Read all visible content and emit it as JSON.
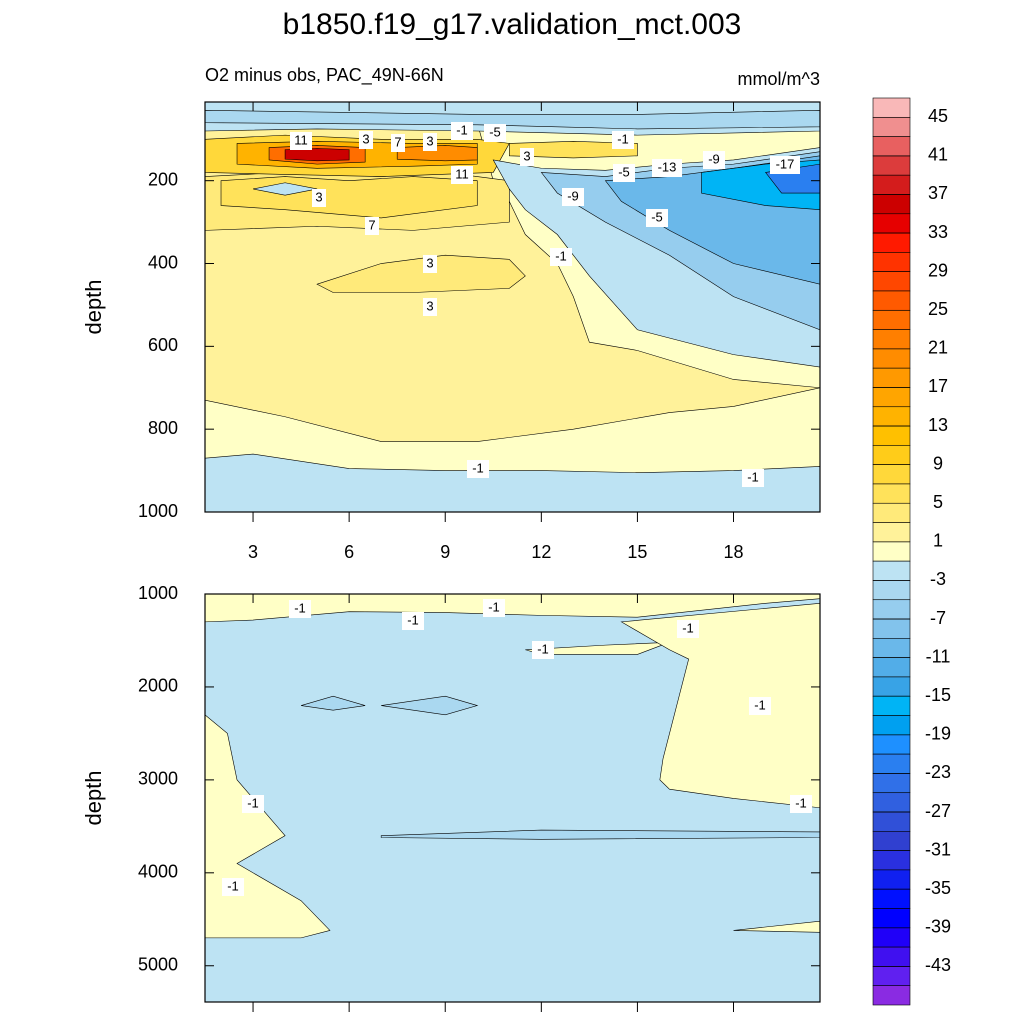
{
  "title": "b1850.f19_g17.validation_mct.003",
  "colorbar": {
    "lim": [
      -47,
      47
    ],
    "ticks": [
      45,
      41,
      37,
      33,
      29,
      25,
      21,
      17,
      13,
      9,
      5,
      1,
      -3,
      -7,
      -11,
      -15,
      -19,
      -23,
      -27,
      -31,
      -35,
      -39,
      -43
    ],
    "colors": [
      "#f9b8b8",
      "#f08f8f",
      "#e86060",
      "#dc3c3c",
      "#d41c1c",
      "#cc0000",
      "#e60000",
      "#ff1a00",
      "#ff3300",
      "#ff4700",
      "#ff5a00",
      "#ff6e00",
      "#ff7f00",
      "#ff8c00",
      "#ff9900",
      "#ffa500",
      "#ffb300",
      "#ffc000",
      "#ffcc19",
      "#ffd83a",
      "#ffe25a",
      "#ffea7a",
      "#fff29a",
      "#ffffc6",
      "#bde3f3",
      "#aad8f0",
      "#96cdee",
      "#82c3ec",
      "#6ab8ea",
      "#52ade8",
      "#38a3e6",
      "#00b4f5",
      "#00a0f0",
      "#1e90ff",
      "#2a7ff0",
      "#3070e8",
      "#3060e0",
      "#3050d8",
      "#3040d0",
      "#2a30e0",
      "#1020f0",
      "#0010ff",
      "#0000ff",
      "#2000f8",
      "#4010f0",
      "#6020f0",
      "#8a2be2"
    ]
  },
  "chart_data": [
    {
      "type": "contour",
      "subtitle_left": "O2 minus obs, PAC_49N-66N",
      "subtitle_right": "mmol/m^3",
      "y_label": "depth",
      "xlim": [
        1.5,
        20.7
      ],
      "xticks": [
        3,
        6,
        9,
        12,
        15,
        18
      ],
      "ylim": [
        10,
        1000
      ],
      "yticks": [
        200,
        400,
        600,
        800,
        1000
      ],
      "regions": [
        {
          "value": 0,
          "x": [
            1.5,
            20.7,
            20.7,
            1.5
          ],
          "y": [
            10,
            10,
            1000,
            1000
          ]
        },
        {
          "value": -2,
          "x": [
            1.5,
            3,
            6,
            9,
            12,
            15,
            18,
            20.7,
            20.7,
            1.5
          ],
          "y": [
            870,
            860,
            895,
            900,
            900,
            905,
            900,
            890,
            1000,
            1000
          ]
        },
        {
          "value": 2,
          "x": [
            1.5,
            10,
            10.5,
            11,
            11.5,
            12.5,
            13,
            13.5,
            15,
            18,
            20.7,
            20.7,
            18,
            16,
            13,
            10,
            7,
            4,
            1.5
          ],
          "y": [
            60,
            60,
            200,
            250,
            330,
            400,
            480,
            590,
            610,
            680,
            700,
            700,
            745,
            760,
            800,
            830,
            830,
            770,
            730
          ]
        },
        {
          "value": 4,
          "x": [
            5,
            7,
            9,
            11,
            11.5,
            11,
            8,
            5.5
          ],
          "y": [
            450,
            400,
            380,
            390,
            430,
            460,
            470,
            470
          ]
        },
        {
          "value": 4,
          "x": [
            1.5,
            4,
            7,
            9,
            11,
            11,
            8,
            5,
            1.5
          ],
          "y": [
            190,
            180,
            190,
            180,
            200,
            300,
            320,
            310,
            320
          ]
        },
        {
          "value": 6,
          "x": [
            2,
            4,
            6,
            8,
            10,
            10,
            7,
            4,
            2
          ],
          "y": [
            200,
            190,
            200,
            190,
            200,
            260,
            290,
            270,
            260
          ]
        },
        {
          "value": -2,
          "x": [
            3,
            4,
            5,
            4
          ],
          "y": [
            220,
            205,
            220,
            235
          ]
        },
        {
          "value": 8,
          "x": [
            1.5,
            4,
            7,
            10,
            11,
            10.5,
            7,
            4,
            1.5
          ],
          "y": [
            100,
            90,
            100,
            100,
            110,
            180,
            190,
            185,
            180
          ]
        },
        {
          "value": 14,
          "x": [
            2.5,
            5,
            8,
            10,
            10,
            8,
            5,
            2.5
          ],
          "y": [
            110,
            105,
            110,
            110,
            160,
            165,
            170,
            160
          ]
        },
        {
          "value": 24,
          "x": [
            3.5,
            5,
            6.5,
            6.5,
            5,
            3.5
          ],
          "y": [
            120,
            115,
            120,
            155,
            160,
            150
          ]
        },
        {
          "value": 36,
          "x": [
            4,
            5,
            6,
            6,
            5,
            4
          ],
          "y": [
            125,
            122,
            125,
            150,
            152,
            148
          ]
        },
        {
          "value": 20,
          "x": [
            7.5,
            9,
            10,
            10,
            9,
            7.5
          ],
          "y": [
            120,
            115,
            120,
            150,
            152,
            148
          ]
        },
        {
          "value": 6,
          "x": [
            11,
            13,
            15,
            15,
            13,
            11
          ],
          "y": [
            110,
            105,
            110,
            140,
            145,
            140
          ]
        },
        {
          "value": -2,
          "x": [
            1.5,
            20.7,
            20.7,
            15,
            10,
            5,
            1.5
          ],
          "y": [
            10,
            10,
            80,
            90,
            80,
            75,
            80
          ]
        },
        {
          "value": -4,
          "x": [
            1.5,
            10,
            15,
            20.7,
            20.7,
            15,
            10,
            1.5
          ],
          "y": [
            30,
            40,
            40,
            30,
            70,
            75,
            65,
            60
          ]
        },
        {
          "value": -2,
          "x": [
            10.5,
            12,
            14,
            16,
            18,
            20.7,
            20.7,
            18,
            15,
            13.5,
            13,
            12.5,
            11.5,
            11
          ],
          "y": [
            150,
            170,
            175,
            160,
            150,
            120,
            650,
            620,
            560,
            430,
            380,
            330,
            270,
            220
          ]
        },
        {
          "value": -6,
          "x": [
            12,
            14,
            16,
            18,
            20.7,
            20.7,
            18,
            16,
            14,
            12.5
          ],
          "y": [
            180,
            190,
            170,
            160,
            130,
            560,
            480,
            380,
            300,
            230
          ]
        },
        {
          "value": -10,
          "x": [
            14,
            16,
            18,
            20.7,
            20.7,
            18,
            16,
            14.5
          ],
          "y": [
            200,
            190,
            170,
            140,
            450,
            400,
            320,
            250
          ]
        },
        {
          "value": -16,
          "x": [
            17,
            19,
            20.7,
            20.7,
            19,
            17
          ],
          "y": [
            180,
            160,
            150,
            270,
            260,
            230
          ]
        },
        {
          "value": -22,
          "x": [
            19,
            20.7,
            20.7,
            19.5
          ],
          "y": [
            180,
            160,
            230,
            230
          ]
        }
      ],
      "contour_labels": [
        "11",
        "3",
        "7",
        "3",
        "-1",
        "-5",
        "3",
        "-1",
        "-5",
        "-13",
        "-9",
        "-17",
        "11",
        "3",
        "-9",
        "-5",
        "7",
        "-1",
        "3",
        "3",
        "-1",
        "-1"
      ]
    },
    {
      "type": "contour",
      "y_label": "depth",
      "xlim": [
        1.5,
        20.7
      ],
      "xticks": [
        3,
        6,
        9,
        12,
        15,
        18
      ],
      "ylim": [
        1000,
        5390
      ],
      "yticks": [
        1000,
        2000,
        3000,
        4000,
        5000
      ],
      "regions": [
        {
          "value": -2,
          "x": [
            1.5,
            20.7,
            20.7,
            1.5
          ],
          "y": [
            1000,
            1000,
            5390,
            5390
          ]
        },
        {
          "value": 0,
          "x": [
            1.5,
            20.7,
            20.7,
            19,
            15,
            12,
            9,
            6,
            3,
            1.5
          ],
          "y": [
            1000,
            1000,
            1050,
            1100,
            1250,
            1230,
            1200,
            1190,
            1280,
            1300
          ]
        },
        {
          "value": 0,
          "x": [
            11.5,
            14,
            16,
            15,
            12
          ],
          "y": [
            1600,
            1550,
            1520,
            1650,
            1650
          ]
        },
        {
          "value": 0,
          "x": [
            14.5,
            20.7,
            20.7,
            18,
            16,
            15.7,
            15.8,
            16.6,
            16
          ],
          "y": [
            1300,
            1100,
            3300,
            3200,
            3100,
            3000,
            2770,
            1700,
            1600
          ]
        },
        {
          "value": 0,
          "x": [
            1.5,
            2.2,
            2.5,
            3,
            4,
            2.5,
            4.5,
            5.4,
            4.5,
            1.5
          ],
          "y": [
            2300,
            2500,
            3000,
            3200,
            3600,
            3900,
            4300,
            4620,
            4700,
            4700
          ]
        },
        {
          "value": 0,
          "x": [
            18,
            20.7,
            20.7
          ],
          "y": [
            4620,
            4520,
            4640
          ]
        },
        {
          "value": -4,
          "x": [
            4.5,
            5.5,
            6.5,
            5.5
          ],
          "y": [
            2200,
            2100,
            2200,
            2250
          ]
        },
        {
          "value": -4,
          "x": [
            7,
            9,
            10,
            9
          ],
          "y": [
            2200,
            2100,
            2200,
            2300
          ]
        },
        {
          "value": -4,
          "x": [
            7,
            12,
            20.7,
            20.7,
            12,
            7
          ],
          "y": [
            3600,
            3540,
            3560,
            3620,
            3640,
            3620
          ]
        }
      ],
      "contour_labels": [
        "-1",
        "-1",
        "-1",
        "-1",
        "-1",
        "-1",
        "-1",
        "-1",
        "-1"
      ]
    }
  ]
}
